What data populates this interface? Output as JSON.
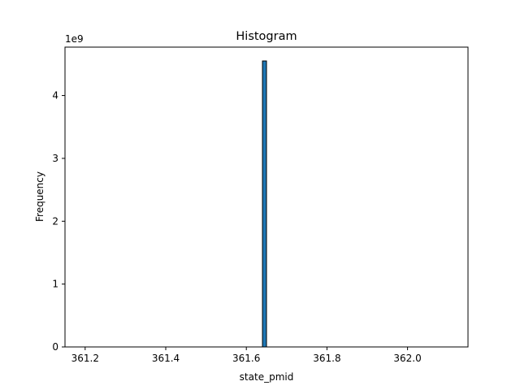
{
  "chart_data": {
    "type": "bar",
    "title": "Histogram",
    "xlabel": "state_pmid",
    "ylabel": "Frequency",
    "y_offset_label": "1e9",
    "xlim": [
      361.15,
      362.15
    ],
    "ylim": [
      0,
      4.77
    ],
    "x_ticks": [
      361.2,
      361.4,
      361.6,
      361.8,
      362.0
    ],
    "x_tick_labels": [
      "361.2",
      "361.4",
      "361.6",
      "361.8",
      "362.0"
    ],
    "y_ticks": [
      0,
      1,
      2,
      3,
      4
    ],
    "y_tick_labels": [
      "0",
      "1",
      "2",
      "3",
      "4"
    ],
    "bins": [
      {
        "start": 361.64,
        "end": 361.65,
        "value": 4.55
      }
    ],
    "baseline_range": [
      361.15,
      362.14
    ],
    "bar_color": "#1f77b4",
    "edge_color": "#000000",
    "grid": false,
    "legend": "none"
  }
}
